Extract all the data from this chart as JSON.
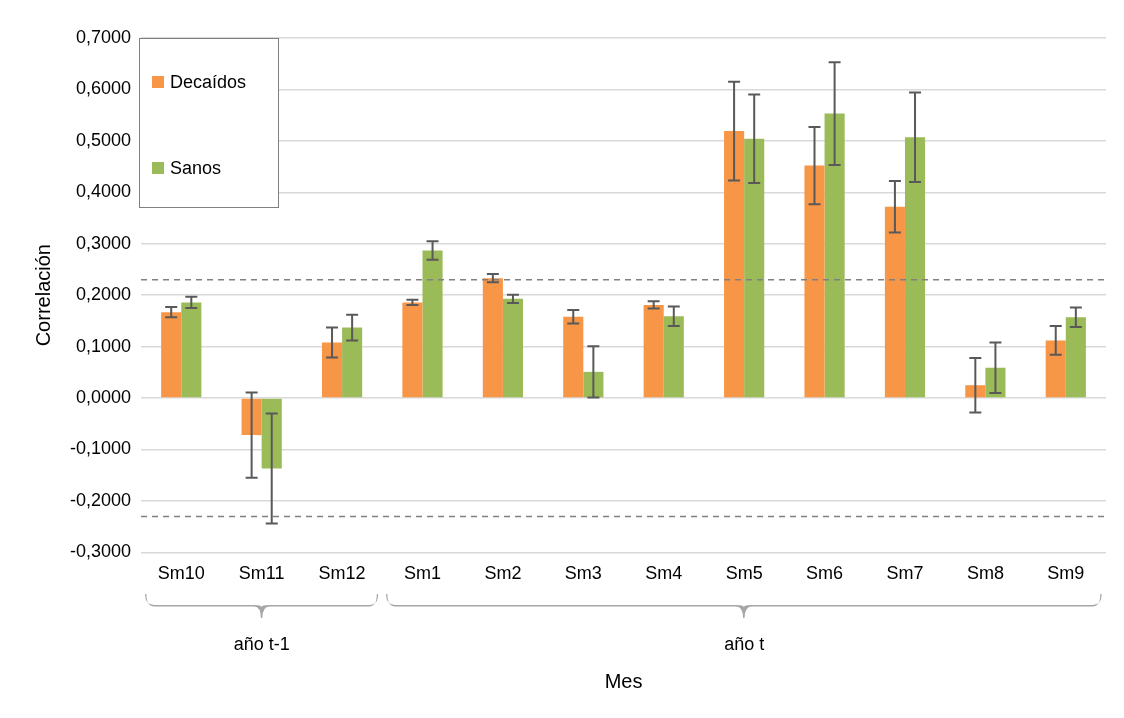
{
  "chart_data": {
    "type": "bar",
    "xlabel": "Mes",
    "ylabel": "Correlación",
    "categories": [
      "Sm10",
      "Sm11",
      "Sm12",
      "Sm1",
      "Sm2",
      "Sm3",
      "Sm4",
      "Sm5",
      "Sm6",
      "Sm7",
      "Sm8",
      "Sm9"
    ],
    "series": [
      {
        "name": "Decaídos",
        "color": "#f79646",
        "values": [
          0.167,
          -0.072,
          0.108,
          0.186,
          0.233,
          0.158,
          0.181,
          0.519,
          0.452,
          0.372,
          0.025,
          0.112
        ],
        "errors": [
          0.01,
          0.083,
          0.029,
          0.005,
          0.008,
          0.013,
          0.007,
          0.096,
          0.075,
          0.05,
          0.053,
          0.028
        ]
      },
      {
        "name": "Sanos",
        "color": "#9bbb59",
        "values": [
          0.186,
          -0.137,
          0.137,
          0.287,
          0.193,
          0.051,
          0.159,
          0.504,
          0.553,
          0.507,
          0.059,
          0.157
        ],
        "errors": [
          0.011,
          0.107,
          0.025,
          0.018,
          0.008,
          0.05,
          0.019,
          0.086,
          0.1,
          0.087,
          0.049,
          0.019
        ]
      }
    ],
    "ylim": [
      -0.3,
      0.7
    ],
    "yticks": [
      {
        "value": -0.3,
        "label": "-0,3000"
      },
      {
        "value": -0.2,
        "label": "-0,2000"
      },
      {
        "value": -0.1,
        "label": "-0,1000"
      },
      {
        "value": 0,
        "label": "0,0000"
      },
      {
        "value": 0.1,
        "label": "0,1000"
      },
      {
        "value": 0.2,
        "label": "0,2000"
      },
      {
        "value": 0.3,
        "label": "0,3000"
      },
      {
        "value": 0.4,
        "label": "0,4000"
      },
      {
        "value": 0.5,
        "label": "0,5000"
      },
      {
        "value": 0.6,
        "label": "0,6000"
      },
      {
        "value": 0.7,
        "label": "0,7000"
      }
    ],
    "ref_lines": [
      {
        "axis": "y",
        "value": 0.23,
        "color": "#808080",
        "line_style": "dashed"
      },
      {
        "axis": "y",
        "value": -0.23,
        "color": "#808080",
        "line_style": "dashed"
      }
    ],
    "annotations": [
      "año t-1",
      "año t"
    ],
    "grid": "y",
    "legend": "top left"
  }
}
